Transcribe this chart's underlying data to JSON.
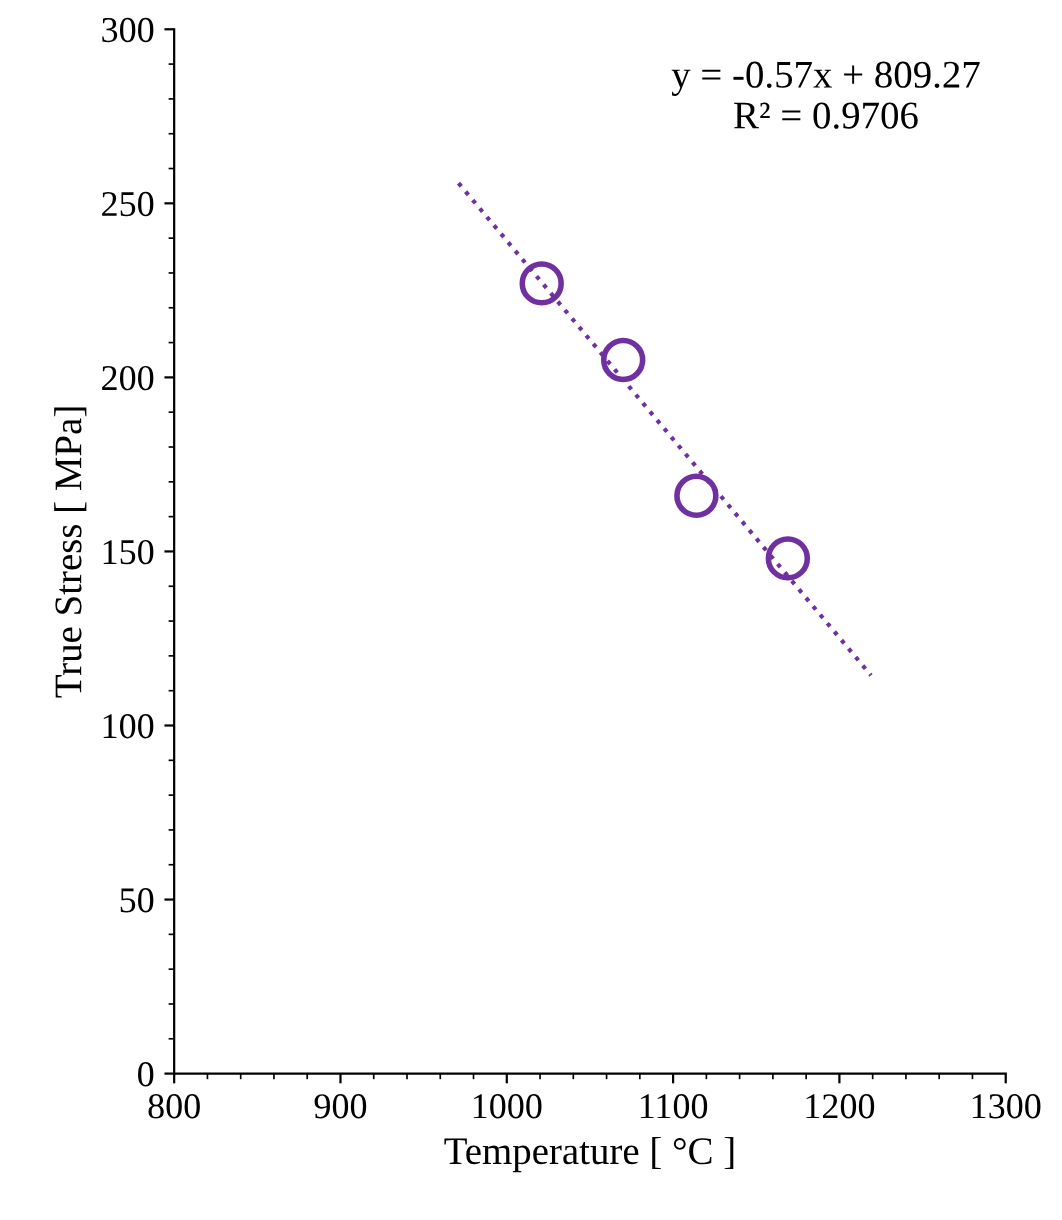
{
  "chart_data": {
    "type": "scatter",
    "xlabel": "Temperature [ °C ]",
    "ylabel": "True Stress [ MPa]",
    "annotations": [
      "y = -0.57x + 809.27\nR² = 0.9706"
    ],
    "xlim": [
      800,
      1300
    ],
    "xticks": [
      800,
      900,
      1000,
      1100,
      1200,
      1300
    ],
    "ylim": [
      0,
      300
    ],
    "yticks": [
      0,
      50,
      100,
      150,
      200,
      250,
      300
    ],
    "grid": false,
    "marker": "circle",
    "series": [
      {
        "color": "#7030a0",
        "x": [
          1021,
          1070,
          1114,
          1169
        ],
        "values": [
          227,
          205,
          166,
          148
        ]
      },
      {
        "type": "line",
        "color": "#7030a0",
        "line_style": "dotted",
        "marker": "none",
        "x": [
          971,
          1219
        ],
        "values": [
          255.8,
          114.4
        ]
      }
    ]
  }
}
